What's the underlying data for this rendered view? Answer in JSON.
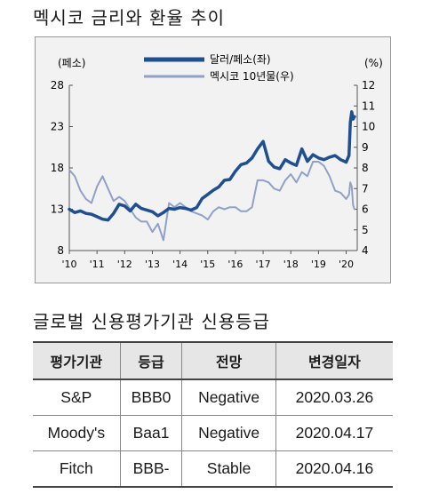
{
  "chart_title": "멕시코 금리와 환율 추이",
  "table_title": "글로벌 신용평가기관 신용등급",
  "chart_data": {
    "type": "line",
    "left_unit": "(페소)",
    "right_unit": "(%)",
    "x_tick_labels": [
      "'10",
      "'11",
      "'12",
      "'13",
      "'14",
      "'15",
      "'16",
      "'17",
      "'18",
      "'19",
      "'20"
    ],
    "x_ticks": [
      2010,
      2011,
      2012,
      2013,
      2014,
      2015,
      2016,
      2017,
      2018,
      2019,
      2020
    ],
    "xlim": [
      2010,
      2020.4
    ],
    "ylim_left": [
      8,
      28
    ],
    "left_ticks": [
      8,
      13,
      18,
      23,
      28
    ],
    "ylim_right": [
      4,
      12
    ],
    "right_ticks": [
      4,
      5,
      6,
      7,
      8,
      9,
      10,
      11,
      12
    ],
    "grid": false,
    "legend_position": "top-center",
    "series": [
      {
        "name": "달러/페소(좌)",
        "axis": "left",
        "color": "#1f4e91",
        "x": [
          2010.0,
          2010.2,
          2010.4,
          2010.6,
          2010.8,
          2011.0,
          2011.2,
          2011.4,
          2011.6,
          2011.8,
          2012.0,
          2012.2,
          2012.4,
          2012.6,
          2012.8,
          2013.0,
          2013.2,
          2013.4,
          2013.6,
          2013.8,
          2014.0,
          2014.2,
          2014.4,
          2014.6,
          2014.8,
          2015.0,
          2015.2,
          2015.4,
          2015.6,
          2015.8,
          2016.0,
          2016.2,
          2016.4,
          2016.6,
          2016.8,
          2017.0,
          2017.2,
          2017.4,
          2017.6,
          2017.8,
          2018.0,
          2018.2,
          2018.4,
          2018.6,
          2018.8,
          2019.0,
          2019.2,
          2019.4,
          2019.6,
          2019.8,
          2020.0,
          2020.1,
          2020.15,
          2020.2,
          2020.25,
          2020.3
        ],
        "values": [
          13.0,
          12.6,
          12.8,
          12.5,
          12.4,
          12.1,
          11.8,
          11.7,
          12.5,
          13.6,
          13.4,
          12.8,
          13.6,
          13.1,
          12.9,
          12.7,
          12.2,
          12.6,
          13.1,
          13.0,
          13.2,
          13.1,
          12.9,
          13.2,
          14.3,
          14.8,
          15.3,
          15.7,
          16.5,
          16.6,
          17.6,
          18.4,
          18.6,
          19.2,
          20.3,
          21.2,
          18.8,
          18.1,
          17.9,
          19.0,
          18.6,
          18.3,
          20.3,
          18.8,
          19.6,
          19.2,
          19.0,
          19.3,
          19.5,
          19.0,
          18.7,
          19.5,
          23.5,
          24.8,
          23.9,
          24.2
        ]
      },
      {
        "name": "멕시코 10년물(우)",
        "axis": "right",
        "color": "#8fa1c7",
        "x": [
          2010.0,
          2010.2,
          2010.4,
          2010.6,
          2010.8,
          2011.0,
          2011.2,
          2011.4,
          2011.6,
          2011.8,
          2012.0,
          2012.2,
          2012.4,
          2012.6,
          2012.8,
          2013.0,
          2013.2,
          2013.4,
          2013.6,
          2013.8,
          2014.0,
          2014.2,
          2014.4,
          2014.6,
          2014.8,
          2015.0,
          2015.2,
          2015.4,
          2015.6,
          2015.8,
          2016.0,
          2016.2,
          2016.4,
          2016.6,
          2016.8,
          2017.0,
          2017.2,
          2017.4,
          2017.6,
          2017.8,
          2018.0,
          2018.2,
          2018.4,
          2018.6,
          2018.8,
          2019.0,
          2019.2,
          2019.4,
          2019.6,
          2019.8,
          2020.0,
          2020.1,
          2020.15,
          2020.2,
          2020.25,
          2020.3
        ],
        "values": [
          7.9,
          7.6,
          6.9,
          6.5,
          6.3,
          7.1,
          7.6,
          7.0,
          6.4,
          6.6,
          6.4,
          6.0,
          5.6,
          5.4,
          5.4,
          4.9,
          5.3,
          4.5,
          6.3,
          6.1,
          6.3,
          6.1,
          5.9,
          5.8,
          5.7,
          5.5,
          5.9,
          6.1,
          6.0,
          6.1,
          6.1,
          5.9,
          5.9,
          6.1,
          7.4,
          7.4,
          7.3,
          7.0,
          6.9,
          7.4,
          7.7,
          7.3,
          7.8,
          7.6,
          8.3,
          8.3,
          8.1,
          7.6,
          6.9,
          6.8,
          6.5,
          6.7,
          7.3,
          7.1,
          6.2,
          6.0
        ]
      }
    ]
  },
  "table": {
    "headers": [
      "평가기관",
      "등급",
      "전망",
      "변경일자"
    ],
    "rows": [
      [
        "S&P",
        "BBB0",
        "Negative",
        "2020.03.26"
      ],
      [
        "Moody's",
        "Baa1",
        "Negative",
        "2020.04.17"
      ],
      [
        "Fitch",
        "BBB-",
        "Stable",
        "2020.04.16"
      ]
    ]
  }
}
